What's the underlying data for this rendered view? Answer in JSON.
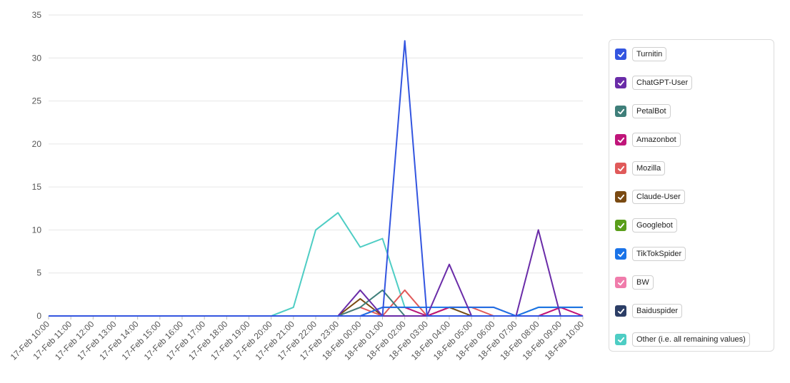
{
  "chart_data": {
    "type": "line",
    "title": "",
    "xlabel": "",
    "ylabel": "",
    "ylim": [
      0,
      35
    ],
    "yticks": [
      0,
      5,
      10,
      15,
      20,
      25,
      30,
      35
    ],
    "grid": true,
    "legend_position": "right",
    "categories": [
      "17-Feb 10:00",
      "17-Feb 11:00",
      "17-Feb 12:00",
      "17-Feb 13:00",
      "17-Feb 14:00",
      "17-Feb 15:00",
      "17-Feb 16:00",
      "17-Feb 17:00",
      "17-Feb 18:00",
      "17-Feb 19:00",
      "17-Feb 20:00",
      "17-Feb 21:00",
      "17-Feb 22:00",
      "17-Feb 23:00",
      "18-Feb 00:00",
      "18-Feb 01:00",
      "18-Feb 02:00",
      "18-Feb 03:00",
      "18-Feb 04:00",
      "18-Feb 05:00",
      "18-Feb 06:00",
      "18-Feb 07:00",
      "18-Feb 08:00",
      "18-Feb 09:00",
      "18-Feb 10:00"
    ],
    "series": [
      {
        "name": "Other (i.e. all remaining values)",
        "color": "#4ecdc4",
        "values": [
          0,
          0,
          0,
          0,
          0,
          0,
          0,
          0,
          0,
          0,
          0,
          1,
          10,
          12,
          8,
          9,
          1,
          0,
          1,
          0,
          0,
          0,
          0,
          0,
          0
        ]
      },
      {
        "name": "Baiduspider",
        "color": "#2c3e66",
        "values": [
          0,
          0,
          0,
          0,
          0,
          0,
          0,
          0,
          0,
          0,
          0,
          0,
          0,
          0,
          0,
          0,
          0,
          0,
          0,
          0,
          0,
          0,
          0,
          0,
          0
        ]
      },
      {
        "name": "BW",
        "color": "#f07cab",
        "values": [
          0,
          0,
          0,
          0,
          0,
          0,
          0,
          0,
          0,
          0,
          0,
          0,
          0,
          0,
          0,
          0,
          0,
          0,
          0,
          0,
          0,
          0,
          0,
          1,
          0
        ]
      },
      {
        "name": "Googlebot",
        "color": "#5a9e1a",
        "values": [
          0,
          0,
          0,
          0,
          0,
          0,
          0,
          0,
          0,
          0,
          0,
          0,
          0,
          0,
          0,
          0,
          0,
          0,
          0,
          0,
          0,
          0,
          0,
          0,
          0
        ]
      },
      {
        "name": "Claude-User",
        "color": "#7a4a12",
        "values": [
          0,
          0,
          0,
          0,
          0,
          0,
          0,
          0,
          0,
          0,
          0,
          0,
          0,
          0,
          2,
          0,
          0,
          0,
          1,
          0,
          0,
          0,
          0,
          0,
          0
        ]
      },
      {
        "name": "Mozilla",
        "color": "#e05a5a",
        "values": [
          0,
          0,
          0,
          0,
          0,
          0,
          0,
          0,
          0,
          0,
          0,
          0,
          0,
          0,
          1,
          0,
          3,
          0,
          1,
          1,
          0,
          0,
          0,
          0,
          0
        ]
      },
      {
        "name": "PetalBot",
        "color": "#3f7f7a",
        "values": [
          0,
          0,
          0,
          0,
          0,
          0,
          0,
          0,
          0,
          0,
          0,
          0,
          0,
          0,
          1,
          3,
          0,
          0,
          0,
          0,
          0,
          0,
          1,
          1,
          1
        ]
      },
      {
        "name": "Amazonbot",
        "color": "#c0157a",
        "values": [
          0,
          0,
          0,
          0,
          0,
          0,
          0,
          0,
          0,
          0,
          0,
          0,
          0,
          0,
          0,
          1,
          1,
          0,
          1,
          1,
          1,
          0,
          0,
          1,
          0
        ]
      },
      {
        "name": "TikTokSpider",
        "color": "#1a73e8",
        "values": [
          0,
          0,
          0,
          0,
          0,
          0,
          0,
          0,
          0,
          0,
          0,
          0,
          0,
          0,
          0,
          1,
          1,
          1,
          1,
          1,
          1,
          0,
          1,
          1,
          1
        ]
      },
      {
        "name": "ChatGPT-User",
        "color": "#6a2ca8",
        "values": [
          0,
          0,
          0,
          0,
          0,
          0,
          0,
          0,
          0,
          0,
          0,
          0,
          0,
          0,
          3,
          0,
          0,
          0,
          6,
          0,
          0,
          0,
          10,
          0,
          0
        ]
      },
      {
        "name": "Turnitin",
        "color": "#3355e0",
        "values": [
          0,
          0,
          0,
          0,
          0,
          0,
          0,
          0,
          0,
          0,
          0,
          0,
          0,
          0,
          0,
          0,
          32,
          0,
          0,
          0,
          0,
          0,
          0,
          0,
          0
        ]
      }
    ]
  },
  "legend": {
    "items": [
      {
        "label": "Turnitin",
        "color": "#3355e0"
      },
      {
        "label": "ChatGPT-User",
        "color": "#6a2ca8"
      },
      {
        "label": "PetalBot",
        "color": "#3f7f7a"
      },
      {
        "label": "Amazonbot",
        "color": "#c0157a"
      },
      {
        "label": "Mozilla",
        "color": "#e05a5a"
      },
      {
        "label": "Claude-User",
        "color": "#7a4a12"
      },
      {
        "label": "Googlebot",
        "color": "#5a9e1a"
      },
      {
        "label": "TikTokSpider",
        "color": "#1a73e8"
      },
      {
        "label": "BW",
        "color": "#f07cab"
      },
      {
        "label": "Baiduspider",
        "color": "#2c3e66"
      },
      {
        "label": "Other (i.e. all remaining values)",
        "color": "#4ecdc4"
      }
    ]
  }
}
